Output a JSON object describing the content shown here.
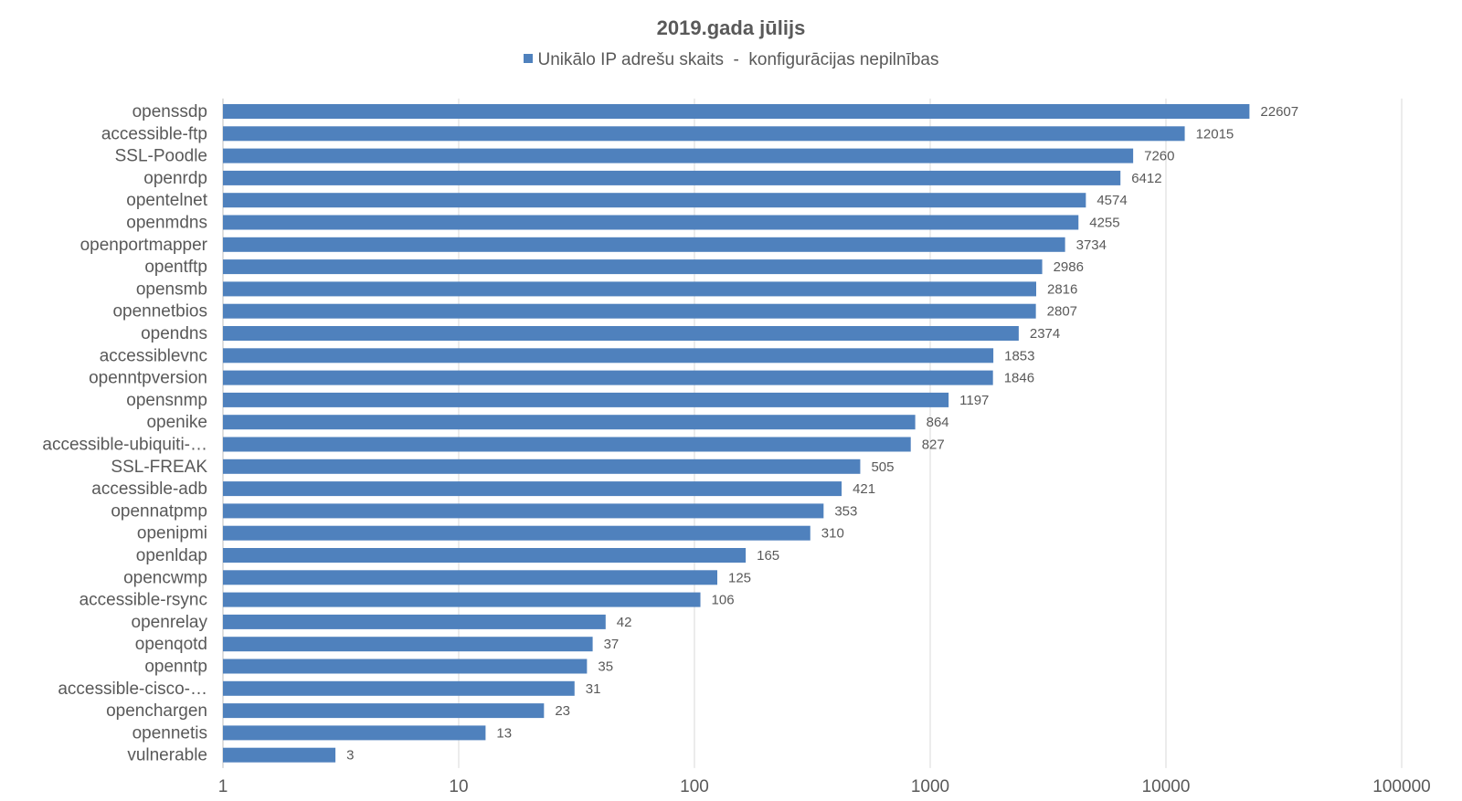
{
  "chart_data": {
    "type": "bar",
    "orientation": "horizontal",
    "title": "2019.gada jūlijs",
    "legend": {
      "position": "top"
    },
    "x_scale": "log",
    "xlim": [
      1,
      100000
    ],
    "x_ticks": [
      "1",
      "10",
      "100",
      "1000",
      "10000",
      "100000"
    ],
    "x_tick_values": [
      1,
      10,
      100,
      1000,
      10000,
      100000
    ],
    "grid": true,
    "colors": {
      "bar": "#4f81bd",
      "grid": "#d9d9d9",
      "text": "#595959"
    },
    "categories": [
      "openssdp",
      "accessible-ftp",
      "SSL-Poodle",
      "openrdp",
      "opentelnet",
      "openmdns",
      "openportmapper",
      "opentftp",
      "opensmb",
      "opennetbios",
      "opendns",
      "accessiblevnc",
      "openntpversion",
      "opensnmp",
      "openike",
      "accessible-ubiquiti-…",
      "SSL-FREAK",
      "accessible-adb",
      "opennatpmp",
      "openipmi",
      "openldap",
      "opencwmp",
      "accessible-rsync",
      "openrelay",
      "openqotd",
      "openntp",
      "accessible-cisco-…",
      "openchargen",
      "opennetis",
      "vulnerable"
    ],
    "series": [
      {
        "name": "Unikālo IP adrešu skaits  -  konfigurācijas nepilnības",
        "values": [
          22607,
          12015,
          7260,
          6412,
          4574,
          4255,
          3734,
          2986,
          2816,
          2807,
          2374,
          1853,
          1846,
          1197,
          864,
          827,
          505,
          421,
          353,
          310,
          165,
          125,
          106,
          42,
          37,
          35,
          31,
          23,
          13,
          3
        ]
      }
    ]
  }
}
